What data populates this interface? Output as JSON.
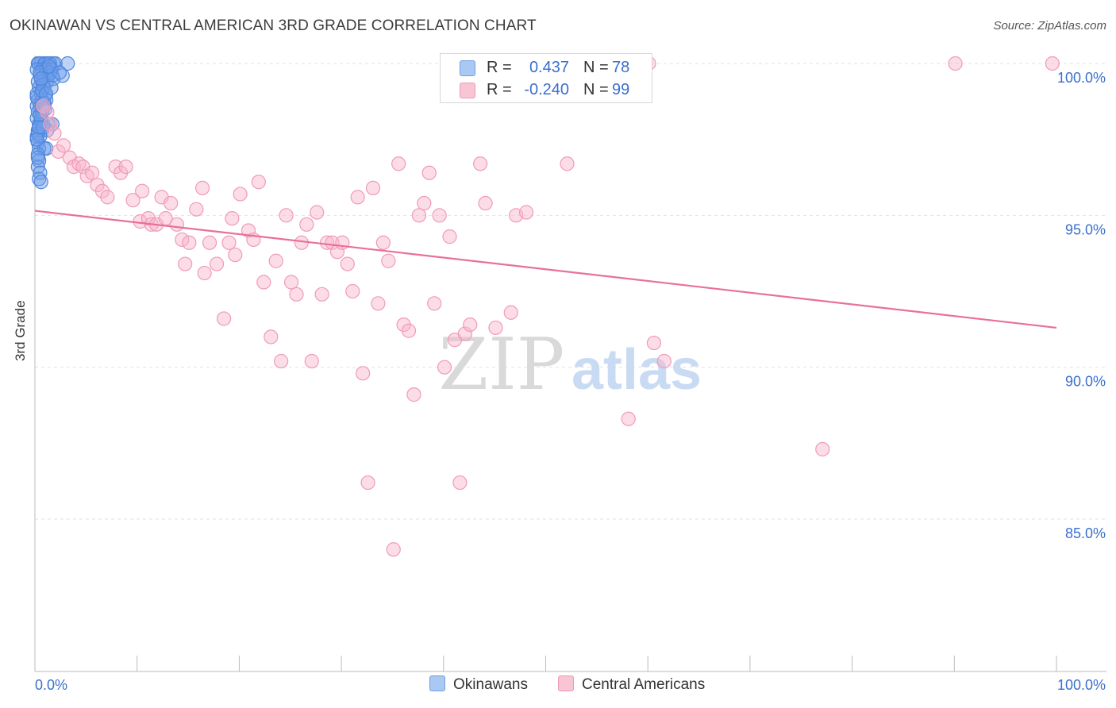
{
  "header": {
    "title": "OKINAWAN VS CENTRAL AMERICAN 3RD GRADE CORRELATION CHART",
    "source": "Source: ZipAtlas.com"
  },
  "legend": {
    "row1": {
      "r_label": "R =",
      "r_value": "0.437",
      "n_label": "N =",
      "n_value": "78"
    },
    "row2": {
      "r_label": "R =",
      "r_value": "-0.240",
      "n_label": "N =",
      "n_value": "99"
    }
  },
  "bottom_legend": {
    "series1": "Okinawans",
    "series2": "Central Americans"
  },
  "watermark": {
    "part1": "ZIP",
    "part2": "atlas"
  },
  "colors": {
    "blue": "#5b8fe0",
    "pink": "#ee7fa3",
    "trend_pink": "#e8709a",
    "tick_blue": "#3a6fd0"
  },
  "chart_data": {
    "type": "scatter",
    "title": "OKINAWAN VS CENTRAL AMERICAN 3RD GRADE CORRELATION CHART",
    "xlabel": "",
    "ylabel": "3rd Grade",
    "xlim": [
      0,
      100
    ],
    "ylim": [
      80.2,
      100.5
    ],
    "x_tick_labels": [
      "0.0%",
      "100.0%"
    ],
    "y_ticks": [
      {
        "value": 100,
        "label": "100.0%"
      },
      {
        "value": 95,
        "label": "95.0%"
      },
      {
        "value": 90,
        "label": "90.0%"
      },
      {
        "value": 85,
        "label": "85.0%"
      }
    ],
    "series": [
      {
        "name": "Okinawans",
        "color": "#5b8fe0",
        "R": 0.437,
        "N": 78,
        "points": [
          [
            0.3,
            100
          ],
          [
            0.6,
            100
          ],
          [
            0.9,
            100
          ],
          [
            1.2,
            100
          ],
          [
            1.5,
            100
          ],
          [
            1.8,
            100
          ],
          [
            0.4,
            100
          ],
          [
            1.0,
            100
          ],
          [
            1.4,
            100
          ],
          [
            2.0,
            100
          ],
          [
            3.2,
            100
          ],
          [
            0.2,
            99.8
          ],
          [
            0.7,
            99.8
          ],
          [
            1.1,
            99.8
          ],
          [
            1.6,
            99.8
          ],
          [
            0.5,
            99.6
          ],
          [
            0.9,
            99.6
          ],
          [
            1.3,
            99.6
          ],
          [
            1.7,
            99.6
          ],
          [
            2.7,
            99.6
          ],
          [
            0.3,
            99.4
          ],
          [
            0.8,
            99.4
          ],
          [
            1.2,
            99.4
          ],
          [
            0.4,
            99.2
          ],
          [
            0.9,
            99.2
          ],
          [
            0.2,
            99.0
          ],
          [
            0.6,
            99.0
          ],
          [
            1.0,
            99.0
          ],
          [
            0.3,
            98.8
          ],
          [
            0.7,
            98.8
          ],
          [
            1.1,
            98.8
          ],
          [
            0.2,
            98.6
          ],
          [
            0.5,
            98.6
          ],
          [
            0.9,
            98.6
          ],
          [
            0.3,
            98.4
          ],
          [
            0.7,
            98.4
          ],
          [
            0.2,
            98.2
          ],
          [
            0.6,
            98.2
          ],
          [
            0.4,
            98.0
          ],
          [
            0.8,
            98.0
          ],
          [
            1.3,
            98.0
          ],
          [
            1.7,
            98.0
          ],
          [
            0.3,
            97.8
          ],
          [
            0.7,
            97.8
          ],
          [
            1.2,
            97.8
          ],
          [
            0.2,
            97.6
          ],
          [
            0.5,
            97.6
          ],
          [
            0.3,
            97.4
          ],
          [
            0.4,
            97.2
          ],
          [
            0.9,
            97.2
          ],
          [
            1.1,
            97.2
          ],
          [
            0.3,
            97.0
          ],
          [
            0.4,
            96.8
          ],
          [
            0.3,
            96.6
          ],
          [
            0.5,
            96.4
          ],
          [
            0.4,
            96.2
          ],
          [
            0.6,
            96.1
          ],
          [
            0.5,
            99.7
          ],
          [
            1.5,
            99.7
          ],
          [
            0.8,
            99.3
          ],
          [
            0.2,
            98.9
          ],
          [
            1.0,
            98.5
          ],
          [
            0.6,
            98.1
          ],
          [
            0.3,
            97.7
          ],
          [
            0.8,
            97.9
          ],
          [
            1.4,
            99.9
          ],
          [
            0.7,
            99.1
          ],
          [
            0.5,
            98.3
          ],
          [
            0.2,
            97.5
          ],
          [
            0.9,
            98.7
          ],
          [
            1.8,
            99.5
          ],
          [
            2.4,
            99.7
          ],
          [
            0.6,
            99.5
          ],
          [
            1.1,
            99.0
          ],
          [
            0.4,
            97.9
          ],
          [
            1.6,
            99.2
          ],
          [
            0.3,
            96.9
          ],
          [
            0.7,
            98.6
          ]
        ]
      },
      {
        "name": "Central Americans",
        "color": "#ee7fa3",
        "R": -0.24,
        "N": 99,
        "points": [
          [
            0.8,
            98.6
          ],
          [
            1.2,
            98.4
          ],
          [
            1.5,
            98.0
          ],
          [
            1.9,
            97.7
          ],
          [
            2.3,
            97.1
          ],
          [
            2.8,
            97.3
          ],
          [
            3.4,
            96.9
          ],
          [
            3.8,
            96.6
          ],
          [
            4.3,
            96.7
          ],
          [
            4.7,
            96.6
          ],
          [
            5.1,
            96.3
          ],
          [
            5.6,
            96.4
          ],
          [
            6.1,
            96.0
          ],
          [
            6.6,
            95.8
          ],
          [
            7.1,
            95.6
          ],
          [
            7.9,
            96.6
          ],
          [
            8.4,
            96.4
          ],
          [
            8.9,
            96.6
          ],
          [
            9.6,
            95.5
          ],
          [
            10.3,
            94.8
          ],
          [
            10.5,
            95.8
          ],
          [
            11.1,
            94.9
          ],
          [
            11.4,
            94.7
          ],
          [
            11.9,
            94.7
          ],
          [
            12.4,
            95.6
          ],
          [
            12.8,
            94.9
          ],
          [
            13.3,
            95.4
          ],
          [
            13.9,
            94.7
          ],
          [
            14.4,
            94.2
          ],
          [
            14.7,
            93.4
          ],
          [
            15.1,
            94.1
          ],
          [
            15.8,
            95.2
          ],
          [
            16.4,
            95.9
          ],
          [
            16.6,
            93.1
          ],
          [
            17.1,
            94.1
          ],
          [
            17.8,
            93.4
          ],
          [
            18.5,
            91.6
          ],
          [
            19.0,
            94.1
          ],
          [
            19.3,
            94.9
          ],
          [
            19.6,
            93.7
          ],
          [
            20.1,
            95.7
          ],
          [
            20.9,
            94.5
          ],
          [
            21.4,
            94.2
          ],
          [
            21.9,
            96.1
          ],
          [
            22.4,
            92.8
          ],
          [
            23.1,
            91.0
          ],
          [
            23.6,
            93.5
          ],
          [
            24.1,
            90.2
          ],
          [
            24.6,
            95.0
          ],
          [
            25.1,
            92.8
          ],
          [
            25.6,
            92.4
          ],
          [
            26.1,
            94.1
          ],
          [
            26.6,
            94.7
          ],
          [
            27.1,
            90.2
          ],
          [
            27.6,
            95.1
          ],
          [
            28.1,
            92.4
          ],
          [
            28.6,
            94.1
          ],
          [
            29.1,
            94.1
          ],
          [
            29.6,
            93.8
          ],
          [
            30.1,
            94.1
          ],
          [
            30.6,
            93.4
          ],
          [
            31.1,
            92.5
          ],
          [
            31.6,
            95.6
          ],
          [
            32.1,
            89.8
          ],
          [
            32.6,
            86.2
          ],
          [
            33.1,
            95.9
          ],
          [
            33.6,
            92.1
          ],
          [
            34.1,
            94.1
          ],
          [
            34.6,
            93.5
          ],
          [
            35.1,
            84.0
          ],
          [
            35.6,
            96.7
          ],
          [
            36.1,
            91.4
          ],
          [
            36.6,
            91.2
          ],
          [
            37.1,
            89.1
          ],
          [
            37.6,
            95.0
          ],
          [
            38.1,
            95.4
          ],
          [
            38.6,
            96.4
          ],
          [
            39.1,
            92.1
          ],
          [
            39.6,
            95.0
          ],
          [
            40.1,
            90.0
          ],
          [
            40.6,
            94.3
          ],
          [
            41.1,
            90.9
          ],
          [
            41.6,
            86.2
          ],
          [
            42.1,
            91.1
          ],
          [
            42.6,
            91.4
          ],
          [
            43.6,
            96.7
          ],
          [
            44.1,
            95.4
          ],
          [
            45.1,
            91.3
          ],
          [
            46.6,
            91.8
          ],
          [
            47.1,
            95.0
          ],
          [
            48.1,
            95.1
          ],
          [
            52.1,
            96.7
          ],
          [
            58.1,
            88.3
          ],
          [
            60.1,
            100.0
          ],
          [
            60.6,
            90.8
          ],
          [
            61.6,
            90.2
          ],
          [
            77.1,
            87.3
          ],
          [
            90.1,
            100.0
          ],
          [
            99.6,
            100.0
          ]
        ]
      }
    ],
    "trend_lines": [
      {
        "series": "Central Americans",
        "x": [
          0,
          100
        ],
        "y": [
          95.15,
          91.3
        ]
      }
    ]
  }
}
